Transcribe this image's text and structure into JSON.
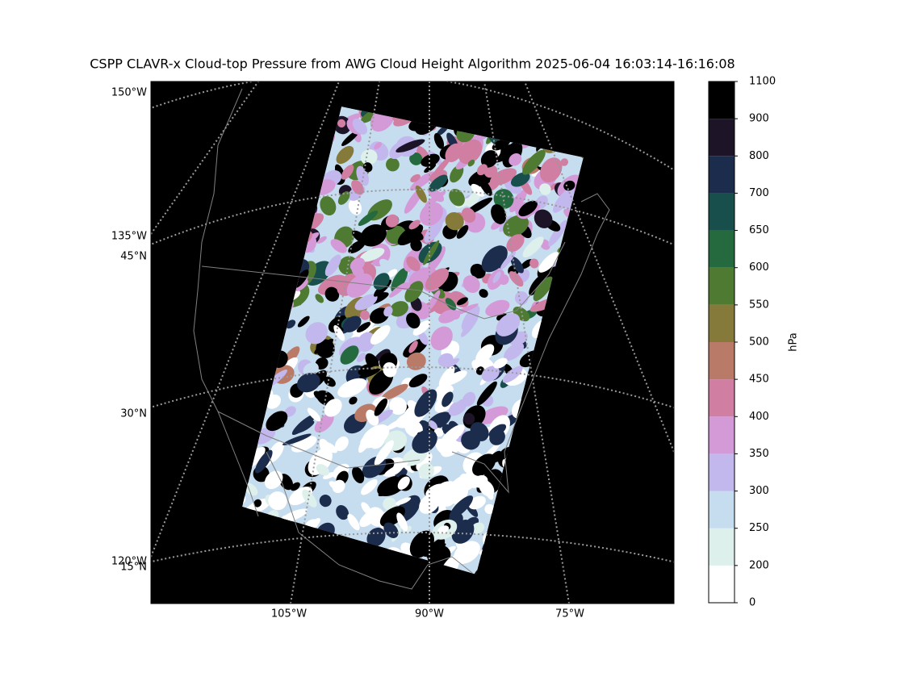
{
  "title": "CSPP CLAVR-x Cloud-top Pressure from AWG Cloud Height Algorithm 2025-06-04 16:03:14-16:16:08",
  "map": {
    "left_labels": [
      "150°W",
      "135°W",
      "45°N",
      "30°N",
      "120°W",
      "15°N"
    ],
    "bottom_labels": [
      "105°W",
      "90°W",
      "75°W"
    ]
  },
  "colorbar": {
    "label": "hPa",
    "boundaries": [
      0,
      200,
      250,
      300,
      350,
      400,
      450,
      500,
      550,
      600,
      650,
      700,
      800,
      900,
      1100
    ],
    "colors": [
      "#ffffff",
      "#ddf0ec",
      "#c6dcef",
      "#c3b8ee",
      "#d49ad8",
      "#d07ea2",
      "#ba7a68",
      "#857a3a",
      "#4e7a32",
      "#256a3e",
      "#184e4b",
      "#1c2c4c",
      "#1d1428",
      "#000000"
    ]
  }
}
